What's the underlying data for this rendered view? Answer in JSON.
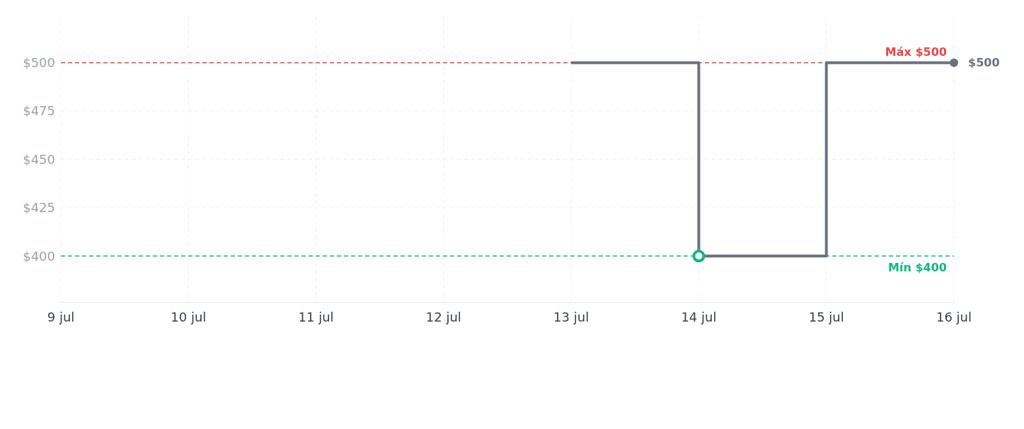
{
  "chart_data": {
    "type": "step",
    "x": [
      "--07-13",
      "--07-14",
      "--07-15",
      "--07-16"
    ],
    "series": [
      {
        "color": "#6b7280",
        "values": [
          500,
          400,
          500,
          500
        ]
      },
      {
        "type": "scatter",
        "color": "#10b981",
        "marker": "circle",
        "x": [
          "--07-14"
        ],
        "values": [
          400
        ]
      }
    ],
    "xlim": [
      "--07-09",
      "--07-16"
    ],
    "xticks": [
      {
        "value": "--07-09",
        "label": "9 jul"
      },
      {
        "value": "--07-10",
        "label": "10 jul"
      },
      {
        "value": "--07-11",
        "label": "11 jul"
      },
      {
        "value": "--07-12",
        "label": "12 jul"
      },
      {
        "value": "--07-13",
        "label": "13 jul"
      },
      {
        "value": "--07-14",
        "label": "14 jul"
      },
      {
        "value": "--07-15",
        "label": "15 jul"
      },
      {
        "value": "--07-16",
        "label": "16 jul"
      }
    ],
    "ylim": [
      376,
      524
    ],
    "yticks": [
      {
        "value": 400,
        "label": "$400"
      },
      {
        "value": 425,
        "label": "$425"
      },
      {
        "value": 450,
        "label": "$450"
      },
      {
        "value": 475,
        "label": "$475"
      },
      {
        "value": 500,
        "label": "$500"
      }
    ],
    "ref_lines": [
      {
        "axis": "y",
        "value": 500,
        "label": "Máx $500",
        "color": "#ef4444",
        "line_style": "dashed"
      },
      {
        "axis": "y",
        "value": 400,
        "label": "Mín $400",
        "color": "#10b981",
        "line_style": "dashed"
      }
    ],
    "annotations": [
      {
        "text": "$500",
        "x": "--07-16",
        "y": 500
      }
    ],
    "grid": true,
    "line_style": "solid"
  }
}
